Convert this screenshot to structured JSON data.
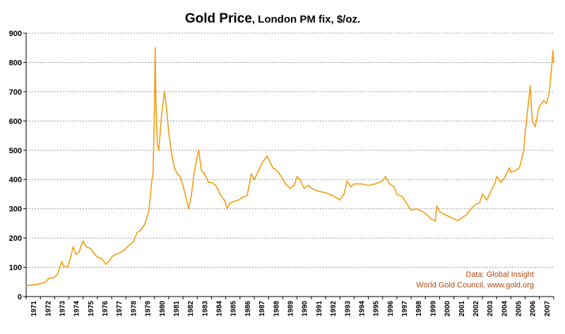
{
  "chart_data": {
    "type": "line",
    "title": "Gold Price",
    "subtitle": ", London PM fix, $/oz.",
    "xlabel": "",
    "ylabel": "",
    "xlim": [
      1971,
      2008
    ],
    "ylim": [
      0,
      900
    ],
    "y_ticks": [
      "0",
      "100",
      "200",
      "300",
      "400",
      "500",
      "600",
      "700",
      "800",
      "900"
    ],
    "x_ticks": [
      "1971",
      "1972",
      "1973",
      "1974",
      "1975",
      "1976",
      "1977",
      "1978",
      "1979",
      "1980",
      "1981",
      "1982",
      "1983",
      "1984",
      "1985",
      "1986",
      "1987",
      "1988",
      "1989",
      "1990",
      "1991",
      "1992",
      "1993",
      "1994",
      "1995",
      "1996",
      "1997",
      "1998",
      "1999",
      "2000",
      "2001",
      "2002",
      "2003",
      "2004",
      "2005",
      "2006",
      "2007"
    ],
    "grid": "horizontal dotted",
    "series": [
      {
        "color": "#f39c12",
        "points": [
          [
            1971.0,
            37
          ],
          [
            1971.5,
            40
          ],
          [
            1972.0,
            44
          ],
          [
            1972.3,
            48
          ],
          [
            1972.6,
            62
          ],
          [
            1972.9,
            64
          ],
          [
            1973.2,
            75
          ],
          [
            1973.5,
            120
          ],
          [
            1973.6,
            105
          ],
          [
            1973.9,
            100
          ],
          [
            1974.1,
            130
          ],
          [
            1974.3,
            170
          ],
          [
            1974.5,
            145
          ],
          [
            1974.7,
            150
          ],
          [
            1974.9,
            180
          ],
          [
            1975.0,
            190
          ],
          [
            1975.2,
            170
          ],
          [
            1975.5,
            165
          ],
          [
            1975.8,
            145
          ],
          [
            1976.0,
            135
          ],
          [
            1976.3,
            130
          ],
          [
            1976.6,
            110
          ],
          [
            1976.8,
            120
          ],
          [
            1977.0,
            135
          ],
          [
            1977.3,
            145
          ],
          [
            1977.6,
            150
          ],
          [
            1977.9,
            160
          ],
          [
            1978.2,
            175
          ],
          [
            1978.5,
            185
          ],
          [
            1978.8,
            220
          ],
          [
            1979.0,
            225
          ],
          [
            1979.3,
            245
          ],
          [
            1979.6,
            290
          ],
          [
            1979.8,
            390
          ],
          [
            1979.9,
            420
          ],
          [
            1980.0,
            640
          ],
          [
            1980.05,
            850
          ],
          [
            1980.1,
            680
          ],
          [
            1980.2,
            520
          ],
          [
            1980.3,
            500
          ],
          [
            1980.5,
            620
          ],
          [
            1980.7,
            700
          ],
          [
            1980.85,
            640
          ],
          [
            1981.0,
            560
          ],
          [
            1981.2,
            490
          ],
          [
            1981.4,
            440
          ],
          [
            1981.6,
            420
          ],
          [
            1981.8,
            410
          ],
          [
            1982.0,
            380
          ],
          [
            1982.2,
            340
          ],
          [
            1982.4,
            300
          ],
          [
            1982.6,
            350
          ],
          [
            1982.8,
            430
          ],
          [
            1983.0,
            480
          ],
          [
            1983.1,
            500
          ],
          [
            1983.3,
            430
          ],
          [
            1983.5,
            420
          ],
          [
            1983.8,
            390
          ],
          [
            1984.0,
            390
          ],
          [
            1984.3,
            380
          ],
          [
            1984.6,
            350
          ],
          [
            1984.9,
            330
          ],
          [
            1985.1,
            300
          ],
          [
            1985.3,
            320
          ],
          [
            1985.6,
            325
          ],
          [
            1985.9,
            330
          ],
          [
            1986.2,
            340
          ],
          [
            1986.5,
            345
          ],
          [
            1986.8,
            420
          ],
          [
            1987.0,
            400
          ],
          [
            1987.3,
            430
          ],
          [
            1987.6,
            460
          ],
          [
            1987.9,
            480
          ],
          [
            1988.0,
            470
          ],
          [
            1988.3,
            440
          ],
          [
            1988.6,
            430
          ],
          [
            1988.9,
            410
          ],
          [
            1989.2,
            385
          ],
          [
            1989.5,
            370
          ],
          [
            1989.8,
            380
          ],
          [
            1990.0,
            410
          ],
          [
            1990.2,
            400
          ],
          [
            1990.5,
            370
          ],
          [
            1990.8,
            380
          ],
          [
            1991.0,
            370
          ],
          [
            1991.5,
            360
          ],
          [
            1992.0,
            355
          ],
          [
            1992.5,
            345
          ],
          [
            1993.0,
            330
          ],
          [
            1993.3,
            350
          ],
          [
            1993.5,
            395
          ],
          [
            1993.8,
            375
          ],
          [
            1994.0,
            385
          ],
          [
            1994.5,
            385
          ],
          [
            1995.0,
            380
          ],
          [
            1995.5,
            385
          ],
          [
            1996.0,
            395
          ],
          [
            1996.2,
            410
          ],
          [
            1996.5,
            385
          ],
          [
            1996.8,
            375
          ],
          [
            1997.0,
            350
          ],
          [
            1997.4,
            340
          ],
          [
            1997.8,
            310
          ],
          [
            1998.0,
            295
          ],
          [
            1998.4,
            300
          ],
          [
            1998.8,
            290
          ],
          [
            1999.0,
            285
          ],
          [
            1999.4,
            265
          ],
          [
            1999.7,
            258
          ],
          [
            1999.8,
            310
          ],
          [
            2000.0,
            290
          ],
          [
            2000.4,
            280
          ],
          [
            2000.8,
            270
          ],
          [
            2001.0,
            265
          ],
          [
            2001.3,
            260
          ],
          [
            2001.6,
            270
          ],
          [
            2001.9,
            280
          ],
          [
            2002.2,
            300
          ],
          [
            2002.5,
            315
          ],
          [
            2002.8,
            320
          ],
          [
            2003.0,
            350
          ],
          [
            2003.3,
            330
          ],
          [
            2003.6,
            360
          ],
          [
            2003.9,
            390
          ],
          [
            2004.0,
            410
          ],
          [
            2004.3,
            390
          ],
          [
            2004.6,
            410
          ],
          [
            2004.9,
            440
          ],
          [
            2005.0,
            425
          ],
          [
            2005.3,
            430
          ],
          [
            2005.6,
            440
          ],
          [
            2005.9,
            500
          ],
          [
            2006.0,
            560
          ],
          [
            2006.2,
            650
          ],
          [
            2006.35,
            720
          ],
          [
            2006.5,
            600
          ],
          [
            2006.7,
            580
          ],
          [
            2006.9,
            630
          ],
          [
            2007.0,
            650
          ],
          [
            2007.3,
            670
          ],
          [
            2007.5,
            660
          ],
          [
            2007.7,
            700
          ],
          [
            2007.8,
            760
          ],
          [
            2007.9,
            810
          ],
          [
            2007.95,
            840
          ],
          [
            2008.0,
            800
          ]
        ]
      }
    ],
    "annotations": [
      "Data: Global Insight",
      "World Gold Council, www.gold.org"
    ]
  }
}
